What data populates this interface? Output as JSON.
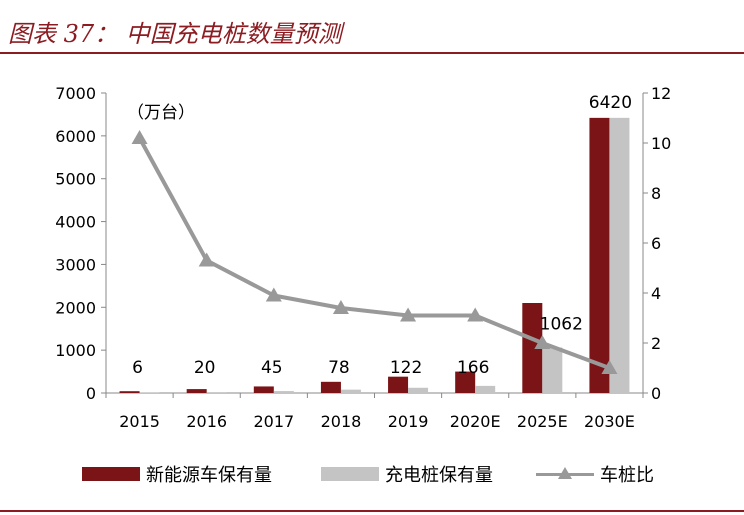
{
  "title": "图表 37： 中国充电桩数量预测",
  "unit_label": "（万台）",
  "legend": {
    "ev": "新能源车保有量",
    "charger": "充电桩保有量",
    "ratio": "车桩比"
  },
  "colors": {
    "ev": "#7b1416",
    "charger": "#c4c4c4",
    "ratio": "#999999",
    "accent": "#8c1c22"
  },
  "chart_data": {
    "type": "bar",
    "title": "中国充电桩数量预测",
    "unit": "万台",
    "categories": [
      "2015",
      "2016",
      "2017",
      "2018",
      "2019",
      "2020E",
      "2025E",
      "2030E"
    ],
    "series": [
      {
        "name": "新能源车保有量",
        "axis": "left",
        "values": [
          42,
          91,
          153,
          261,
          381,
          500,
          2100,
          6420
        ]
      },
      {
        "name": "充电桩保有量",
        "axis": "left",
        "values": [
          6,
          20,
          45,
          78,
          122,
          166,
          1062,
          6420
        ]
      },
      {
        "name": "车桩比",
        "axis": "right",
        "type": "line",
        "values": [
          10.2,
          5.3,
          3.9,
          3.4,
          3.1,
          3.1,
          2.0,
          1.0
        ]
      }
    ],
    "data_labels": [
      "6",
      "20",
      "45",
      "78",
      "122",
      "166",
      "1062",
      "6420"
    ],
    "ylim_left": [
      0,
      7000
    ],
    "yticks_left": [
      0,
      1000,
      2000,
      3000,
      4000,
      5000,
      6000,
      7000
    ],
    "ylim_right": [
      0,
      12
    ],
    "yticks_right": [
      0,
      2,
      4,
      6,
      8,
      10,
      12
    ],
    "grid": false,
    "legend_position": "bottom"
  }
}
